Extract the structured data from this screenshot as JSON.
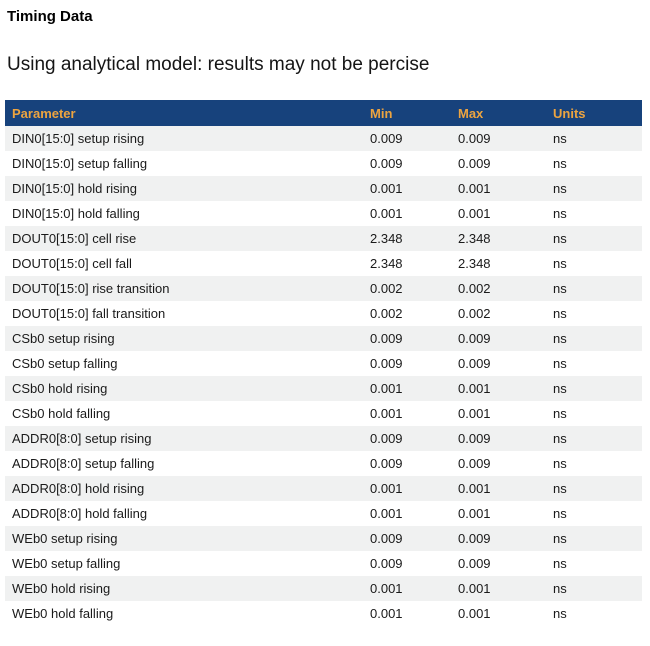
{
  "page": {
    "title": "Timing Data",
    "subtitle": "Using analytical model: results may not be percise"
  },
  "table": {
    "columns": [
      "Parameter",
      "Min",
      "Max",
      "Units"
    ],
    "rows": [
      {
        "parameter": "DIN0[15:0] setup rising",
        "min": "0.009",
        "max": "0.009",
        "units": "ns"
      },
      {
        "parameter": "DIN0[15:0] setup falling",
        "min": "0.009",
        "max": "0.009",
        "units": "ns"
      },
      {
        "parameter": "DIN0[15:0] hold rising",
        "min": "0.001",
        "max": "0.001",
        "units": "ns"
      },
      {
        "parameter": "DIN0[15:0] hold falling",
        "min": "0.001",
        "max": "0.001",
        "units": "ns"
      },
      {
        "parameter": "DOUT0[15:0] cell rise",
        "min": "2.348",
        "max": "2.348",
        "units": "ns"
      },
      {
        "parameter": "DOUT0[15:0] cell fall",
        "min": "2.348",
        "max": "2.348",
        "units": "ns"
      },
      {
        "parameter": "DOUT0[15:0] rise transition",
        "min": "0.002",
        "max": "0.002",
        "units": "ns"
      },
      {
        "parameter": "DOUT0[15:0] fall transition",
        "min": "0.002",
        "max": "0.002",
        "units": "ns"
      },
      {
        "parameter": "CSb0 setup rising",
        "min": "0.009",
        "max": "0.009",
        "units": "ns"
      },
      {
        "parameter": "CSb0 setup falling",
        "min": "0.009",
        "max": "0.009",
        "units": "ns"
      },
      {
        "parameter": "CSb0 hold rising",
        "min": "0.001",
        "max": "0.001",
        "units": "ns"
      },
      {
        "parameter": "CSb0 hold falling",
        "min": "0.001",
        "max": "0.001",
        "units": "ns"
      },
      {
        "parameter": "ADDR0[8:0] setup rising",
        "min": "0.009",
        "max": "0.009",
        "units": "ns"
      },
      {
        "parameter": "ADDR0[8:0] setup falling",
        "min": "0.009",
        "max": "0.009",
        "units": "ns"
      },
      {
        "parameter": "ADDR0[8:0] hold rising",
        "min": "0.001",
        "max": "0.001",
        "units": "ns"
      },
      {
        "parameter": "ADDR0[8:0] hold falling",
        "min": "0.001",
        "max": "0.001",
        "units": "ns"
      },
      {
        "parameter": "WEb0 setup rising",
        "min": "0.009",
        "max": "0.009",
        "units": "ns"
      },
      {
        "parameter": "WEb0 setup falling",
        "min": "0.009",
        "max": "0.009",
        "units": "ns"
      },
      {
        "parameter": "WEb0 hold rising",
        "min": "0.001",
        "max": "0.001",
        "units": "ns"
      },
      {
        "parameter": "WEb0 hold falling",
        "min": "0.001",
        "max": "0.001",
        "units": "ns"
      }
    ]
  },
  "colors": {
    "table_header_bg": "#17427c",
    "table_header_text": "#eda440",
    "row_alt_bg": "#f0f1f1",
    "body_text": "#1a1a1a"
  }
}
